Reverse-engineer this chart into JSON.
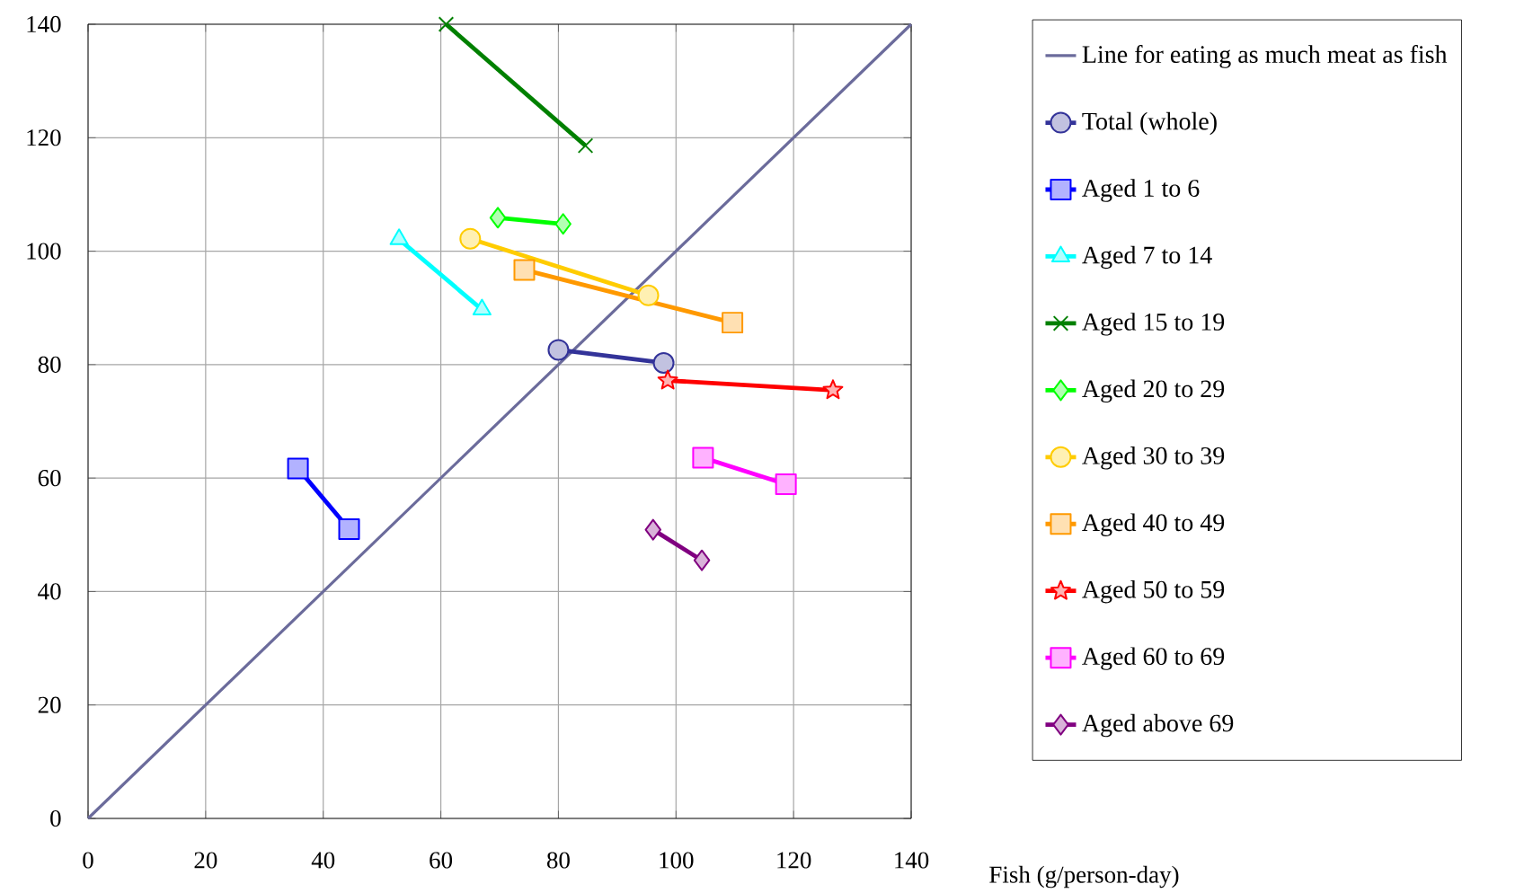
{
  "chart_data": {
    "type": "line",
    "xlabel": "Fish (g/person-day)",
    "xlim": [
      0,
      140
    ],
    "ylim": [
      0,
      140
    ],
    "xticks": [
      0,
      20,
      40,
      60,
      80,
      100,
      120,
      140
    ],
    "yticks": [
      0,
      20,
      40,
      60,
      80,
      100,
      120,
      140
    ],
    "grid": true,
    "legend": "right",
    "series": [
      {
        "name": "Line for eating as much meat as fish",
        "color": "#6b6b9b",
        "marker": "none",
        "x": [
          0,
          140
        ],
        "values": [
          0,
          140
        ]
      },
      {
        "name": "Total (whole)",
        "color": "#333399",
        "marker": "circle",
        "x": [
          80.0,
          97.9
        ],
        "values": [
          82.6,
          80.3
        ]
      },
      {
        "name": "Aged 1 to 6",
        "color": "#0000ff",
        "marker": "square",
        "x": [
          35.7,
          44.4
        ],
        "values": [
          61.7,
          51.0
        ]
      },
      {
        "name": "Aged 7 to 14",
        "color": "#00ffff",
        "marker": "triangle",
        "x": [
          52.9,
          67.0
        ],
        "values": [
          102.1,
          89.7
        ]
      },
      {
        "name": "Aged 15 to 19",
        "color": "#008000",
        "marker": "cross",
        "x": [
          60.9,
          84.6
        ],
        "values": [
          140,
          118.6
        ]
      },
      {
        "name": "Aged 20 to 29",
        "color": "#00ff00",
        "marker": "diamond",
        "x": [
          69.7,
          80.8
        ],
        "values": [
          105.9,
          104.8
        ]
      },
      {
        "name": "Aged 30 to 39",
        "color": "#ffcc00",
        "marker": "circle",
        "x": [
          65.0,
          95.3
        ],
        "values": [
          102.2,
          92.2
        ]
      },
      {
        "name": "Aged 40 to 49",
        "color": "#ff9900",
        "marker": "square",
        "x": [
          74.2,
          109.6
        ],
        "values": [
          96.7,
          87.4
        ]
      },
      {
        "name": "Aged 50 to 59",
        "color": "#ff0000",
        "marker": "star",
        "x": [
          98.6,
          126.7
        ],
        "values": [
          77.2,
          75.5
        ]
      },
      {
        "name": "Aged 60 to 69",
        "color": "#ff00ff",
        "marker": "square",
        "x": [
          104.6,
          118.7
        ],
        "values": [
          63.6,
          58.9
        ]
      },
      {
        "name": "Aged above 69",
        "color": "#800080",
        "marker": "diamond",
        "x": [
          96.1,
          104.4
        ],
        "values": [
          50.9,
          45.5
        ]
      }
    ]
  }
}
